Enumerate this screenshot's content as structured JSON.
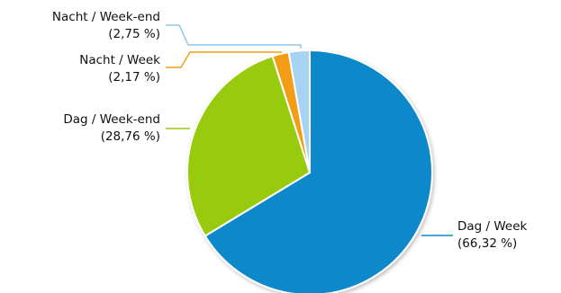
{
  "chart_data": {
    "type": "pie",
    "title": "",
    "start_angle_deg": 0,
    "direction": "clockwise",
    "slices": [
      {
        "label": "Dag / Week",
        "percent_text": "(66,32 %)",
        "value": 66.32,
        "color": "#0A89CB",
        "line_color": "#0A89CB"
      },
      {
        "label": "Dag / Week-end",
        "percent_text": "(28,76 %)",
        "value": 28.76,
        "color": "#98CB0A",
        "line_color": "#98CB0A"
      },
      {
        "label": "Nacht / Week",
        "percent_text": "(2,17 %)",
        "value": 2.17,
        "color": "#F39C12",
        "line_color": "#F39C12"
      },
      {
        "label": "Nacht / Week-end",
        "percent_text": "(2,75 %)",
        "value": 2.75,
        "color": "#A6D3F2",
        "line_color": "#8EC5EE"
      }
    ]
  }
}
